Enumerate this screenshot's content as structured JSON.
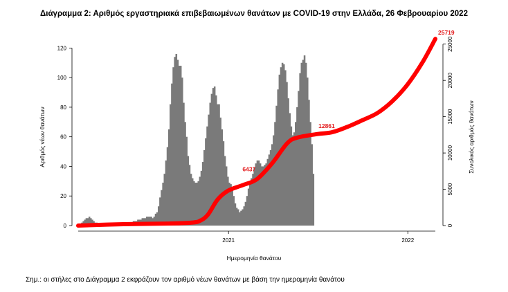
{
  "chart_data": {
    "type": "bar",
    "title": "Διάγραμμα 2: Αριθμός εργαστηριακά επιβεβαιωμένων θανάτων με COVID-19 στην Ελλάδα, 26 Φεβρουαρίου 2022",
    "xlabel": "Ημερομηνία θανάτου",
    "ylabel": "Αριθμός νέων θανάτων",
    "y2label": "Συνολικός αριθμός θανάτων",
    "x_tick_labels": [
      "2021",
      "2022"
    ],
    "y_ticks": [
      0,
      20,
      40,
      60,
      80,
      100,
      120
    ],
    "y2_ticks": [
      0,
      5000,
      10000,
      15000,
      20000,
      25000
    ],
    "ylim": [
      0,
      130
    ],
    "y2lim": [
      0,
      26500
    ],
    "x_range": [
      "2020-03-01",
      "2022-02-26"
    ],
    "series": [
      {
        "name": "",
        "kind": "bar",
        "color": "#7a7a7a",
        "x_start": "2020-03-01",
        "x_step_days": 3,
        "values": [
          0,
          1,
          2,
          3,
          4,
          5,
          5,
          6,
          5,
          4,
          3,
          2,
          2,
          1,
          1,
          1,
          1,
          1,
          0,
          0,
          0,
          1,
          0,
          1,
          1,
          1,
          1,
          1,
          1,
          1,
          1,
          1,
          1,
          2,
          2,
          2,
          2,
          3,
          3,
          3,
          4,
          4,
          4,
          5,
          5,
          5,
          6,
          6,
          6,
          6,
          5,
          6,
          8,
          9,
          13,
          19,
          24,
          29,
          35,
          44,
          53,
          65,
          82,
          96,
          107,
          114,
          116,
          112,
          108,
          108,
          100,
          83,
          70,
          60,
          47,
          41,
          35,
          32,
          30,
          29,
          29,
          30,
          33,
          37,
          43,
          51,
          59,
          67,
          75,
          83,
          89,
          93,
          94,
          88,
          82,
          82,
          73,
          65,
          57,
          47,
          40,
          33,
          29,
          28,
          26,
          20,
          15,
          12,
          11,
          9,
          10,
          11,
          13,
          16,
          20,
          25,
          28,
          32,
          35,
          39,
          42,
          44,
          44,
          42,
          40,
          40,
          41,
          42,
          45,
          48,
          51,
          55,
          61,
          70,
          81,
          92,
          102,
          107,
          110,
          109,
          105,
          97,
          86,
          76,
          67,
          61,
          63,
          70,
          80,
          91,
          103,
          110,
          112,
          115,
          110,
          100,
          85,
          70,
          55,
          35
        ]
      },
      {
        "name": "",
        "kind": "line",
        "color": "#ff0000",
        "axis": "right",
        "x": [
          "2020-03-01",
          "2020-06-01",
          "2020-09-01",
          "2020-10-20",
          "2020-11-05",
          "2020-11-20",
          "2020-12-10",
          "2020-12-31",
          "2021-01-31",
          "2021-02-28",
          "2021-03-31",
          "2021-04-30",
          "2021-05-20",
          "2021-06-30",
          "2021-07-31",
          "2021-08-31",
          "2021-09-30",
          "2021-10-31",
          "2021-11-30",
          "2021-12-31",
          "2022-01-31",
          "2022-02-26"
        ],
        "y": [
          0,
          190,
          280,
          420,
          700,
          1500,
          3600,
          4800,
          5600,
          6400,
          8600,
          11300,
          12100,
          12600,
          12861,
          13600,
          14500,
          15500,
          17100,
          19400,
          22500,
          25719
        ]
      }
    ],
    "annotations": [
      {
        "text": "6437",
        "x": "2021-02-28",
        "y": 6437
      },
      {
        "text": "12861",
        "x": "2021-07-31",
        "y": 12861
      },
      {
        "text": "25719",
        "x": "2022-02-26",
        "y": 25719
      }
    ],
    "grid": false,
    "legend": "none"
  },
  "footnote": "Σημ.: οι στήλες στο Διάγραμμα 2 εκφράζουν τον αριθμό νέων θανάτων με βάση την ημερομηνία θανάτου"
}
